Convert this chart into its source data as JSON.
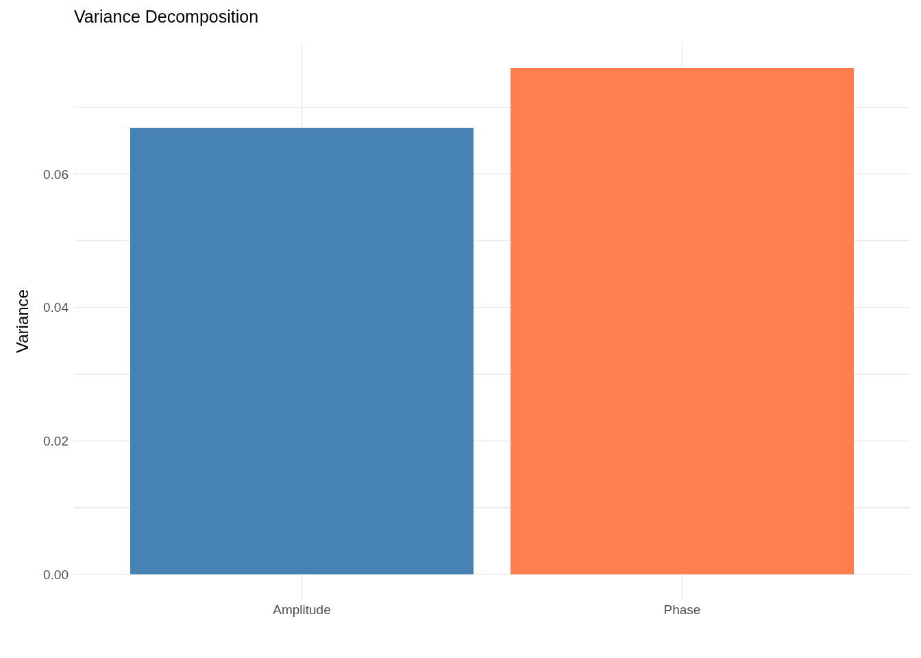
{
  "chart_data": {
    "type": "bar",
    "title": "Variance Decomposition",
    "ylabel": "Variance",
    "categories": [
      "Amplitude",
      "Phase"
    ],
    "values": [
      0.0669,
      0.0759
    ],
    "colors": [
      "#4682b4",
      "#ff7f50"
    ],
    "ylim": [
      -0.0038,
      0.0797
    ],
    "yticks": [
      {
        "value": 0,
        "label": "0.00"
      },
      {
        "value": 0.01,
        "label": null
      },
      {
        "value": 0.02,
        "label": "0.02"
      },
      {
        "value": 0.03,
        "label": null
      },
      {
        "value": 0.04,
        "label": "0.04"
      },
      {
        "value": 0.05,
        "label": null
      },
      {
        "value": 0.06,
        "label": "0.06"
      },
      {
        "value": 0.07,
        "label": null
      }
    ],
    "grid": true
  }
}
